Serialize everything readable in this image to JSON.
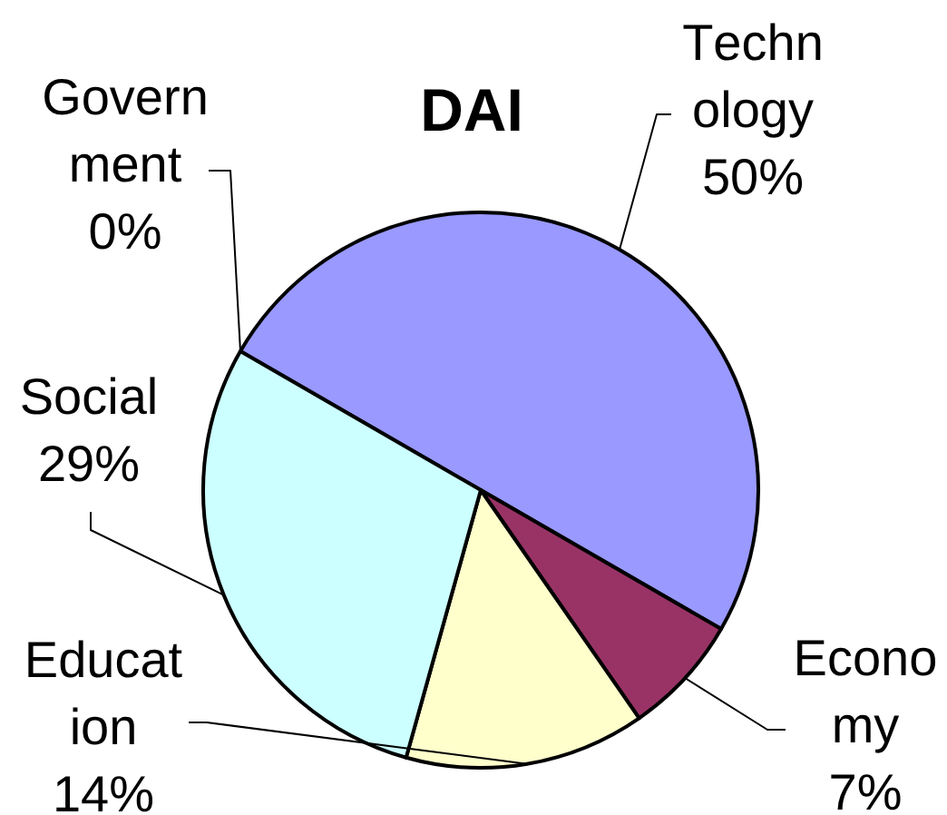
{
  "chart_data": {
    "type": "pie",
    "title": "DAI",
    "categories": [
      "Technology",
      "Economy",
      "Education",
      "Social",
      "Government"
    ],
    "values": [
      50,
      7,
      14,
      29,
      0
    ],
    "colors": [
      "#9999ff",
      "#993366",
      "#ffffcc",
      "#ccffff",
      null
    ],
    "value_labels": [
      "50%",
      "7%",
      "14%",
      "29%",
      "0%"
    ]
  }
}
